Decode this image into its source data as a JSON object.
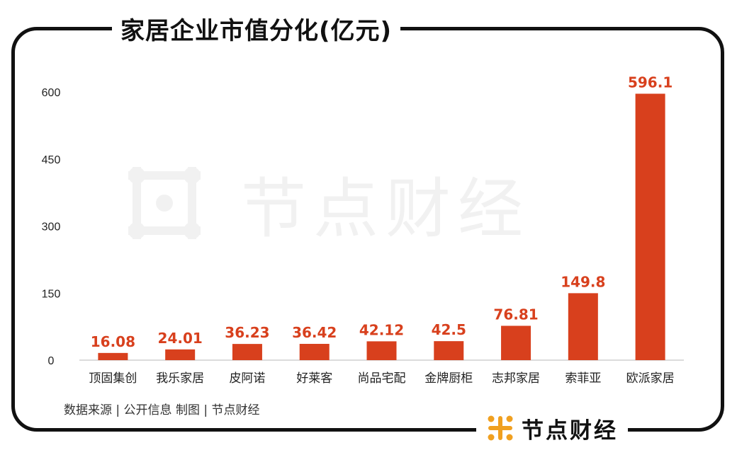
{
  "title": "家居企业市值分化(亿元)",
  "source_note": "数据来源 | 公开信息  制图 | 节点财经",
  "watermark": {
    "text": "节点财经",
    "icon": "logo-mark-icon"
  },
  "brand": {
    "text": "节点财经",
    "icon": "logo-mark-icon"
  },
  "colors": {
    "bar": "#d8401d",
    "label": "#d8401d",
    "logo": "#f0a020",
    "frame": "#111111"
  },
  "chart_data": {
    "type": "bar",
    "categories": [
      "顶固集创",
      "我乐家居",
      "皮阿诺",
      "好莱客",
      "尚品宅配",
      "金牌厨柜",
      "志邦家居",
      "索菲亚",
      "欧派家居"
    ],
    "values": [
      16.08,
      24.01,
      36.23,
      36.42,
      42.12,
      42.5,
      76.81,
      149.8,
      596.1
    ],
    "value_labels": [
      "16.08",
      "24.01",
      "36.23",
      "36.42",
      "42.12",
      "42.5",
      "76.81",
      "149.8",
      "596.1"
    ],
    "y_ticks": [
      "0",
      "150",
      "300",
      "450",
      "600"
    ],
    "ylim": [
      0,
      600
    ],
    "grid": false,
    "legend": "none"
  }
}
